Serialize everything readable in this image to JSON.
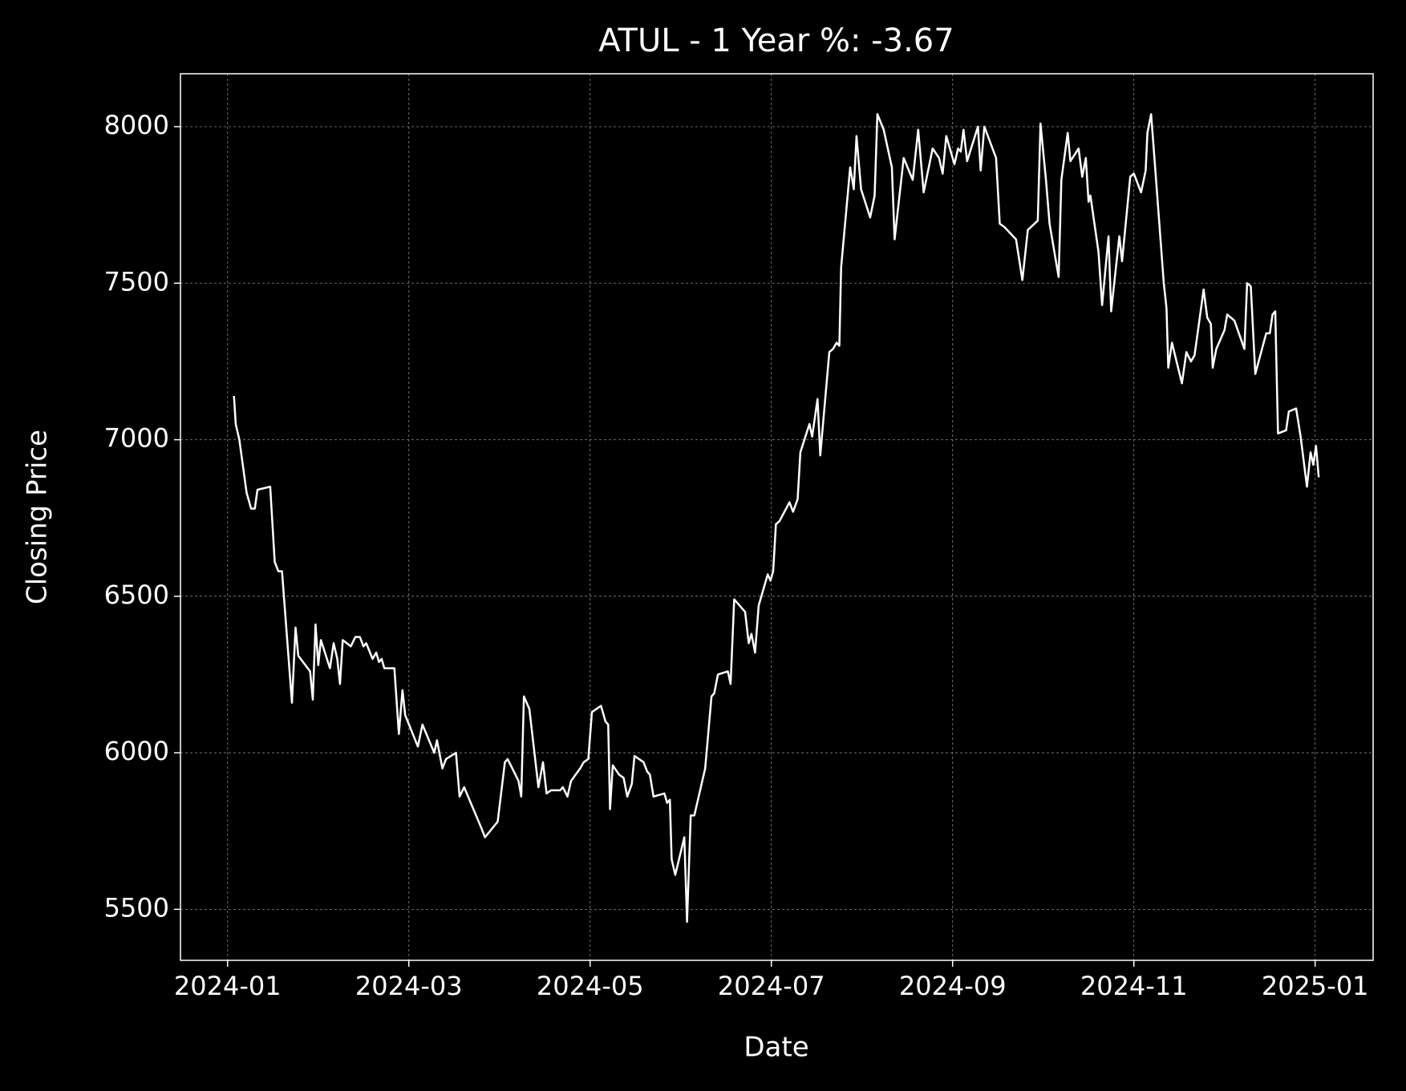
{
  "chart_data": {
    "type": "line",
    "title": "ATUL - 1 Year %: -3.67",
    "xlabel": "Date",
    "ylabel": "Closing Price",
    "color": "#ffffff",
    "grid": true,
    "xlim": [
      -0.52,
      12.64
    ],
    "xticks": [
      {
        "value": 0,
        "label": "2024-01"
      },
      {
        "value": 2,
        "label": "2024-03"
      },
      {
        "value": 4,
        "label": "2024-05"
      },
      {
        "value": 6,
        "label": "2024-07"
      },
      {
        "value": 8,
        "label": "2024-09"
      },
      {
        "value": 10,
        "label": "2024-11"
      },
      {
        "value": 12,
        "label": "2025-01"
      }
    ],
    "ylim": [
      5337,
      8169
    ],
    "yticks": [
      5500,
      6000,
      6500,
      7000,
      7500,
      8000
    ],
    "x": [
      0.07,
      0.09,
      0.13,
      0.21,
      0.26,
      0.3,
      0.33,
      0.47,
      0.52,
      0.56,
      0.6,
      0.71,
      0.75,
      0.78,
      0.91,
      0.94,
      0.97,
      1.0,
      1.03,
      1.13,
      1.17,
      1.21,
      1.24,
      1.27,
      1.36,
      1.41,
      1.46,
      1.5,
      1.53,
      1.6,
      1.64,
      1.67,
      1.7,
      1.73,
      1.84,
      1.89,
      1.93,
      1.96,
      2.1,
      2.15,
      2.28,
      2.31,
      2.37,
      2.41,
      2.52,
      2.56,
      2.61,
      2.8,
      2.84,
      2.98,
      3.06,
      3.09,
      3.21,
      3.24,
      3.27,
      3.33,
      3.43,
      3.48,
      3.52,
      3.57,
      3.67,
      3.7,
      3.75,
      3.79,
      3.89,
      3.93,
      3.98,
      4.02,
      4.12,
      4.17,
      4.2,
      4.22,
      4.25,
      4.32,
      4.37,
      4.41,
      4.46,
      4.49,
      4.59,
      4.63,
      4.66,
      4.7,
      4.82,
      4.85,
      4.88,
      4.9,
      4.94,
      5.04,
      5.07,
      5.11,
      5.15,
      5.27,
      5.34,
      5.37,
      5.41,
      5.52,
      5.55,
      5.59,
      5.71,
      5.75,
      5.78,
      5.82,
      5.86,
      5.96,
      5.99,
      6.02,
      6.05,
      6.09,
      6.2,
      6.24,
      6.29,
      6.32,
      6.42,
      6.45,
      6.51,
      6.54,
      6.64,
      6.68,
      6.72,
      6.75,
      6.77,
      6.87,
      6.91,
      6.94,
      6.99,
      7.09,
      7.14,
      7.17,
      7.24,
      7.33,
      7.36,
      7.46,
      7.56,
      7.62,
      7.68,
      7.78,
      7.85,
      7.89,
      7.93,
      8.02,
      8.06,
      8.09,
      8.12,
      8.16,
      8.28,
      8.31,
      8.35,
      8.48,
      8.52,
      8.57,
      8.7,
      8.77,
      8.83,
      8.94,
      8.97,
      9.03,
      9.07,
      9.17,
      9.2,
      9.27,
      9.3,
      9.39,
      9.43,
      9.47,
      9.5,
      9.52,
      9.61,
      9.65,
      9.72,
      9.75,
      9.84,
      9.87,
      9.96,
      10.0,
      10.08,
      10.13,
      10.15,
      10.19,
      10.24,
      10.33,
      10.36,
      10.38,
      10.42,
      10.53,
      10.58,
      10.63,
      10.67,
      10.77,
      10.81,
      10.85,
      10.87,
      10.91,
      11.0,
      11.03,
      11.11,
      11.22,
      11.25,
      11.29,
      11.34,
      11.46,
      11.5,
      11.53,
      11.56,
      11.59,
      11.68,
      11.71,
      11.79,
      11.84,
      11.91,
      11.95,
      11.98,
      12.01,
      12.04
    ],
    "values": [
      7140,
      7050,
      7000,
      6830,
      6780,
      6780,
      6840,
      6850,
      6610,
      6580,
      6580,
      6160,
      6400,
      6310,
      6260,
      6170,
      6410,
      6280,
      6360,
      6270,
      6350,
      6300,
      6220,
      6360,
      6340,
      6370,
      6370,
      6340,
      6350,
      6300,
      6320,
      6290,
      6300,
      6270,
      6270,
      6060,
      6200,
      6120,
      6020,
      6090,
      6000,
      6040,
      5950,
      5980,
      6000,
      5860,
      5890,
      5760,
      5730,
      5780,
      5970,
      5980,
      5910,
      5860,
      6180,
      6140,
      5890,
      5970,
      5870,
      5880,
      5880,
      5890,
      5860,
      5910,
      5950,
      5970,
      5980,
      6130,
      6150,
      6100,
      6090,
      5820,
      5960,
      5930,
      5920,
      5860,
      5900,
      5990,
      5970,
      5940,
      5930,
      5860,
      5870,
      5840,
      5850,
      5660,
      5610,
      5730,
      5460,
      5800,
      5800,
      5950,
      6180,
      6190,
      6250,
      6260,
      6220,
      6490,
      6450,
      6350,
      6380,
      6320,
      6470,
      6570,
      6550,
      6580,
      6730,
      6740,
      6800,
      6770,
      6810,
      6960,
      7050,
      7010,
      7130,
      6950,
      7280,
      7290,
      7310,
      7300,
      7550,
      7870,
      7800,
      7970,
      7800,
      7710,
      7780,
      8040,
      7990,
      7870,
      7640,
      7900,
      7830,
      7990,
      7790,
      7930,
      7900,
      7850,
      7970,
      7880,
      7930,
      7920,
      7990,
      7890,
      8000,
      7860,
      8000,
      7900,
      7690,
      7680,
      7640,
      7510,
      7670,
      7700,
      8010,
      7830,
      7690,
      7520,
      7830,
      7980,
      7890,
      7930,
      7840,
      7900,
      7760,
      7780,
      7600,
      7430,
      7650,
      7410,
      7650,
      7570,
      7840,
      7850,
      7790,
      7860,
      7980,
      8040,
      7850,
      7500,
      7420,
      7230,
      7310,
      7180,
      7280,
      7250,
      7270,
      7480,
      7390,
      7370,
      7230,
      7290,
      7350,
      7400,
      7380,
      7290,
      7500,
      7490,
      7210,
      7340,
      7340,
      7400,
      7410,
      7020,
      7030,
      7090,
      7100,
      7010,
      6850,
      6960,
      6920,
      6980,
      6880
    ]
  }
}
